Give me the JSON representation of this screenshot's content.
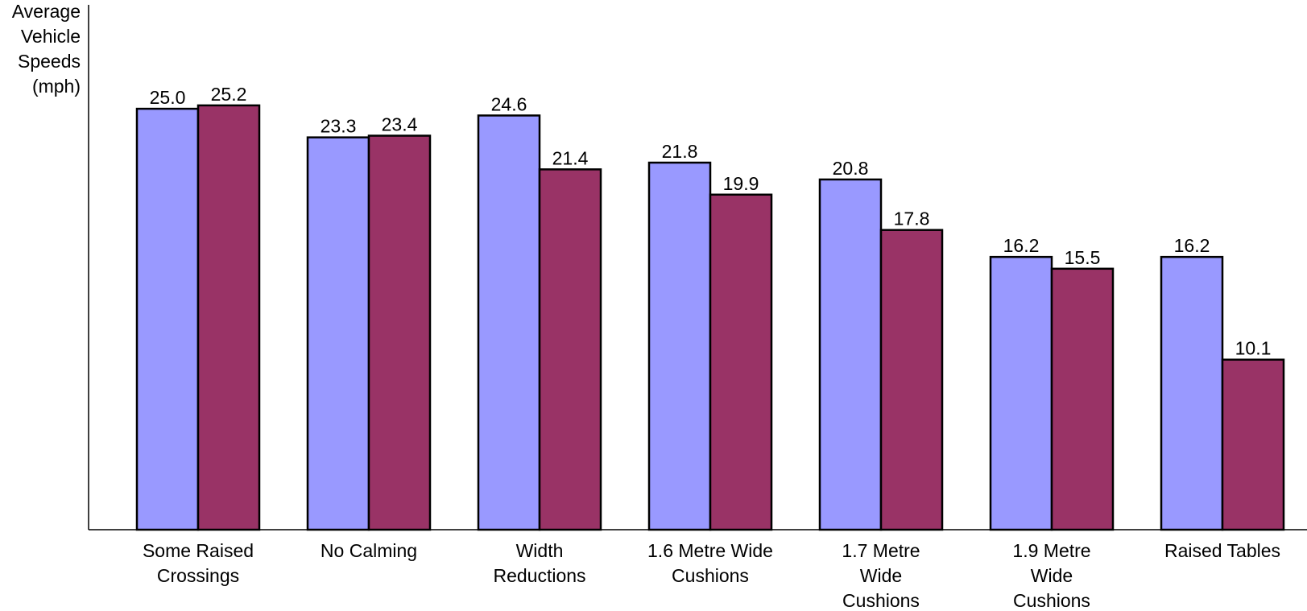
{
  "chart_data": {
    "type": "bar",
    "ylabel_lines": [
      "Average",
      "Vehicle",
      "Speeds",
      "(mph)"
    ],
    "categories": [
      [
        "Some Raised",
        "Crossings"
      ],
      [
        "No Calming"
      ],
      [
        "Width",
        "Reductions"
      ],
      [
        "1.6 Metre Wide",
        "Cushions"
      ],
      [
        "1.7 Metre",
        "Wide",
        "Cushions"
      ],
      [
        "1.9 Metre",
        "Wide",
        "Cushions"
      ],
      [
        "Raised Tables"
      ]
    ],
    "series": [
      {
        "color": "#9999ff",
        "values": [
          25.0,
          23.3,
          24.6,
          21.8,
          20.8,
          16.2,
          16.2
        ]
      },
      {
        "color": "#993366",
        "values": [
          25.2,
          23.4,
          21.4,
          19.9,
          17.8,
          15.5,
          10.1
        ]
      }
    ],
    "ylim": [
      0,
      26.2
    ],
    "grid": false,
    "legend": "none",
    "data_labels": true
  }
}
